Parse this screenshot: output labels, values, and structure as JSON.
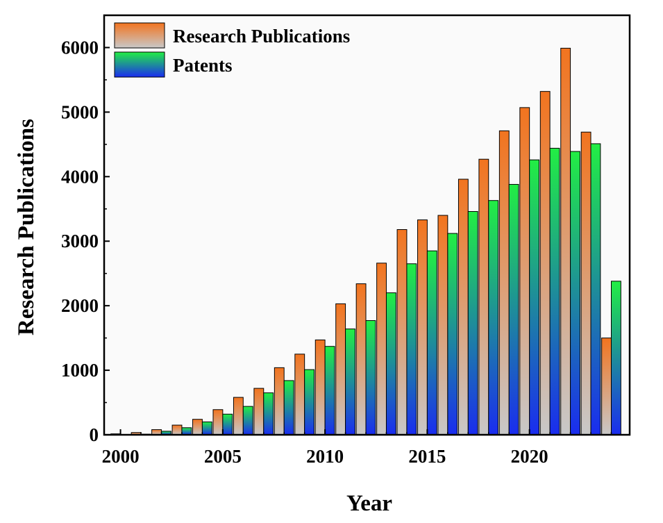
{
  "chart_data": {
    "type": "bar",
    "xlabel": "Year",
    "ylabel": "Research Publications",
    "x": [
      2000,
      2001,
      2002,
      2003,
      2004,
      2005,
      2006,
      2007,
      2008,
      2009,
      2010,
      2011,
      2012,
      2013,
      2014,
      2015,
      2016,
      2017,
      2018,
      2019,
      2020,
      2021,
      2022,
      2023,
      2024
    ],
    "xlim": [
      1999.2,
      2024.9
    ],
    "xticks": [
      2000,
      2005,
      2010,
      2015,
      2020
    ],
    "ylim": [
      0,
      6500
    ],
    "yticks": [
      0,
      1000,
      2000,
      3000,
      4000,
      5000,
      6000
    ],
    "series": [
      {
        "name": "Research Publications",
        "values": [
          15,
          35,
          80,
          150,
          240,
          390,
          580,
          720,
          1040,
          1250,
          1470,
          2030,
          2340,
          2660,
          3180,
          3330,
          3400,
          3960,
          4270,
          4710,
          5070,
          5320,
          5990,
          4690,
          1500
        ],
        "colors": [
          "#f2741f",
          "#c8c8c8"
        ]
      },
      {
        "name": "Patents",
        "values": [
          5,
          10,
          55,
          110,
          200,
          320,
          440,
          650,
          840,
          1010,
          1370,
          1640,
          1770,
          2200,
          2650,
          2850,
          3120,
          3460,
          3630,
          3880,
          4260,
          4440,
          4390,
          4510,
          2380
        ],
        "colors": [
          "#22ee44",
          "#1a2cf0"
        ]
      }
    ],
    "legend": "top-left"
  }
}
